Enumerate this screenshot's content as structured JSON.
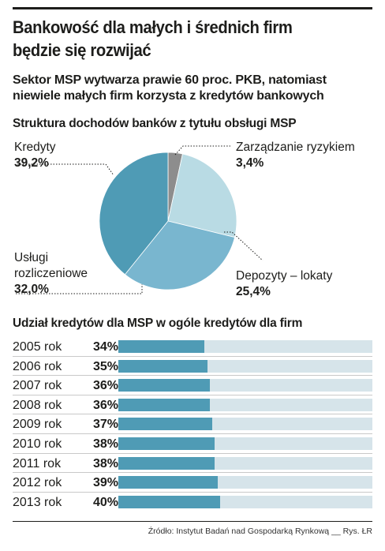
{
  "header": {
    "title_line1": "Bankowość dla małych i średnich firm",
    "title_line2": "będzie się rozwijać",
    "subtitle_line1": "Sektor MSP wytwarza prawie 60 proc. PKB, natomiast",
    "subtitle_line2": "niewiele małych firm korzysta z kredytów bankowych"
  },
  "colors": {
    "kredyty": "#4f9bb5",
    "uslugi": "#79b6cf",
    "depozyty": "#b9dbe4",
    "zarzadzanie": "#8d8d8d",
    "bar_fill": "#4f9bb5",
    "bar_track": "#d6e4ea"
  },
  "chart_data": [
    {
      "type": "pie",
      "title": "Struktura dochodów banków z tytułu obsługi MSP",
      "slices": [
        {
          "label_line1": "Zarządzanie ryzykiem",
          "label_line2": "",
          "value": 3.4,
          "value_label": "3,4%"
        },
        {
          "label_line1": "Depozyty – lokaty",
          "label_line2": "",
          "value": 25.4,
          "value_label": "25,4%"
        },
        {
          "label_line1": "Usługi",
          "label_line2": "rozliczeniowe",
          "value": 32.0,
          "value_label": "32,0%"
        },
        {
          "label_line1": "Kredyty",
          "label_line2": "",
          "value": 39.2,
          "value_label": "39,2%"
        }
      ]
    },
    {
      "type": "bar",
      "title": "Udział kredytów dla MSP w ogóle kredytów dla firm",
      "categories": [
        "2005 rok",
        "2006 rok",
        "2007 rok",
        "2008 rok",
        "2009 rok",
        "2010 rok",
        "2011 rok",
        "2012 rok",
        "2013 rok"
      ],
      "values": [
        34,
        35,
        36,
        36,
        37,
        38,
        38,
        39,
        40
      ],
      "value_labels": [
        "34%",
        "35%",
        "36%",
        "36%",
        "37%",
        "38%",
        "38%",
        "39%",
        "40%"
      ],
      "ylim": [
        0,
        100
      ]
    }
  ],
  "footer": {
    "source": "Źródło: Instytut Badań nad Gospodarką Rynkową __ Rys. ŁR"
  }
}
